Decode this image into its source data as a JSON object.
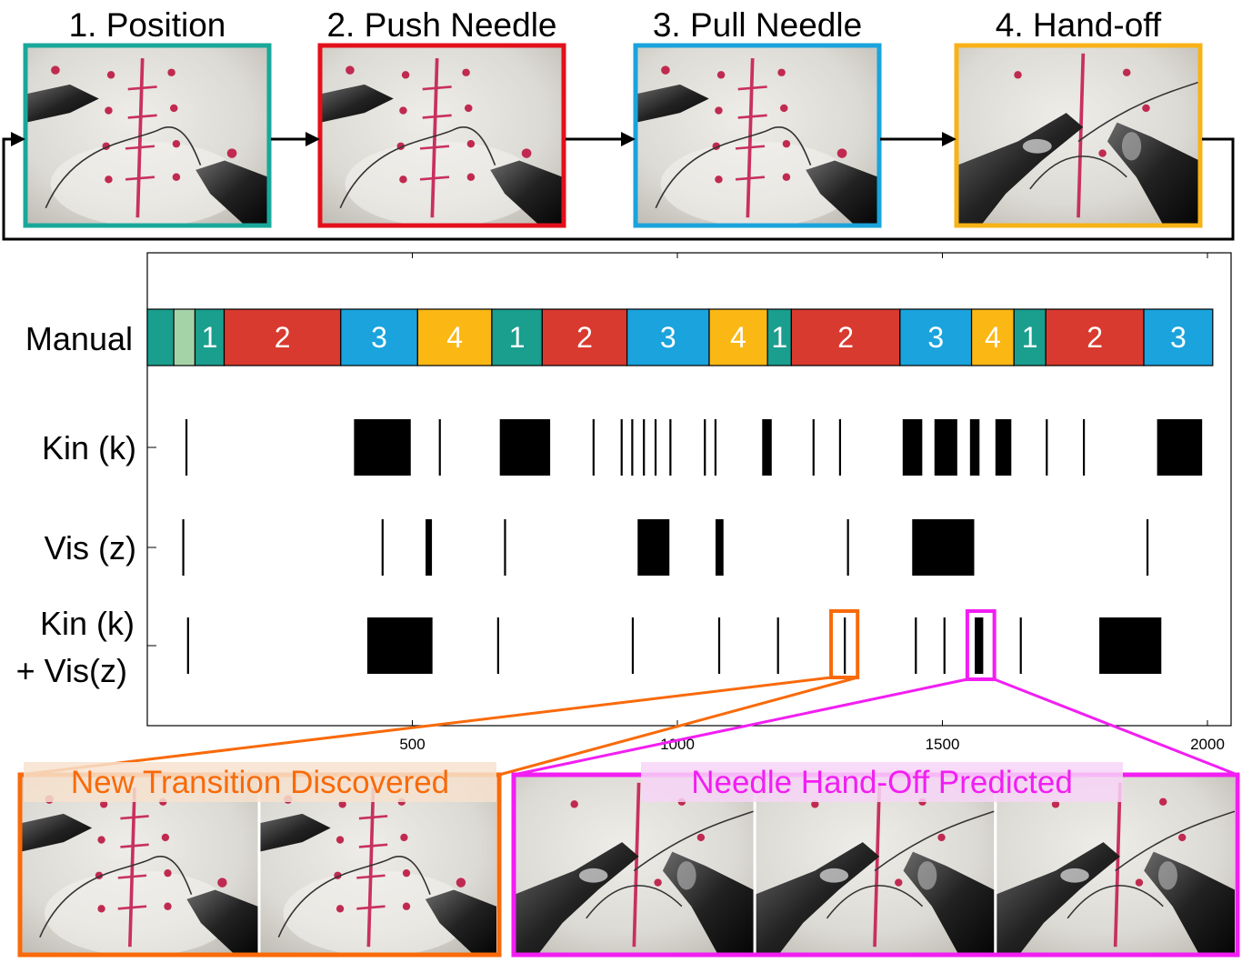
{
  "colors": {
    "position": "#1a9e8e",
    "push": "#d93a2f",
    "pull": "#1aa3dc",
    "handoff": "#fbb714",
    "light": "#a5d3a8",
    "frame_position": "#18a89a",
    "frame_push": "#e3101c",
    "frame_pull": "#1aa3dc",
    "frame_handoff": "#f8b217",
    "orange": "#f86a0a",
    "magenta": "#f21ef2"
  },
  "steps": [
    {
      "label": "1. Position",
      "color": "frame_position",
      "icon": "surgical-frame-position-photo"
    },
    {
      "label": "2. Push Needle",
      "color": "frame_push",
      "icon": "surgical-frame-push-needle-photo"
    },
    {
      "label": "3. Pull Needle",
      "color": "frame_pull",
      "icon": "surgical-frame-pull-needle-photo"
    },
    {
      "label": "4. Hand-off",
      "color": "frame_handoff",
      "icon": "surgical-frame-hand-off-photo"
    }
  ],
  "chart_data": {
    "type": "timeline",
    "xlim": [
      0,
      2030
    ],
    "x_ticks": [
      500,
      1000,
      1500,
      2000
    ],
    "rows": [
      {
        "label": "Manual",
        "kind": "segments"
      },
      {
        "label": "Kin (k)",
        "kind": "events"
      },
      {
        "label": "Vis (z)",
        "kind": "events"
      },
      {
        "label": "Kin (k)",
        "label2": "+ Vis(z)",
        "kind": "events"
      }
    ],
    "manual_segments": [
      {
        "start": 0,
        "end": 50,
        "color": "position",
        "label": ""
      },
      {
        "start": 50,
        "end": 90,
        "color": "light",
        "label": ""
      },
      {
        "start": 90,
        "end": 145,
        "color": "position",
        "label": "1"
      },
      {
        "start": 145,
        "end": 365,
        "color": "push",
        "label": "2"
      },
      {
        "start": 365,
        "end": 510,
        "color": "pull",
        "label": "3"
      },
      {
        "start": 510,
        "end": 650,
        "color": "handoff",
        "label": "4"
      },
      {
        "start": 650,
        "end": 745,
        "color": "position",
        "label": "1"
      },
      {
        "start": 745,
        "end": 905,
        "color": "push",
        "label": "2"
      },
      {
        "start": 905,
        "end": 1060,
        "color": "pull",
        "label": "3"
      },
      {
        "start": 1060,
        "end": 1170,
        "color": "handoff",
        "label": "4"
      },
      {
        "start": 1170,
        "end": 1215,
        "color": "position",
        "label": "1"
      },
      {
        "start": 1215,
        "end": 1420,
        "color": "push",
        "label": "2"
      },
      {
        "start": 1420,
        "end": 1555,
        "color": "pull",
        "label": "3"
      },
      {
        "start": 1555,
        "end": 1635,
        "color": "handoff",
        "label": "4"
      },
      {
        "start": 1635,
        "end": 1695,
        "color": "position",
        "label": "1"
      },
      {
        "start": 1695,
        "end": 1880,
        "color": "push",
        "label": "2"
      },
      {
        "start": 1880,
        "end": 2010,
        "color": "pull",
        "label": "3"
      }
    ],
    "kin_events": [
      {
        "start": 72,
        "end": 74
      },
      {
        "start": 390,
        "end": 497
      },
      {
        "start": 550,
        "end": 552
      },
      {
        "start": 665,
        "end": 760
      },
      {
        "start": 840,
        "end": 842
      },
      {
        "start": 893,
        "end": 895
      },
      {
        "start": 913,
        "end": 915
      },
      {
        "start": 935,
        "end": 937
      },
      {
        "start": 957,
        "end": 959
      },
      {
        "start": 985,
        "end": 987
      },
      {
        "start": 1050,
        "end": 1052
      },
      {
        "start": 1070,
        "end": 1072
      },
      {
        "start": 1160,
        "end": 1178
      },
      {
        "start": 1255,
        "end": 1257
      },
      {
        "start": 1305,
        "end": 1307
      },
      {
        "start": 1425,
        "end": 1462
      },
      {
        "start": 1485,
        "end": 1528
      },
      {
        "start": 1552,
        "end": 1570
      },
      {
        "start": 1600,
        "end": 1630
      },
      {
        "start": 1695,
        "end": 1697
      },
      {
        "start": 1765,
        "end": 1767
      },
      {
        "start": 1905,
        "end": 1990
      }
    ],
    "vis_events": [
      {
        "start": 66,
        "end": 68
      },
      {
        "start": 442,
        "end": 444
      },
      {
        "start": 525,
        "end": 537
      },
      {
        "start": 673,
        "end": 675
      },
      {
        "start": 925,
        "end": 985
      },
      {
        "start": 1072,
        "end": 1087
      },
      {
        "start": 1320,
        "end": 1322
      },
      {
        "start": 1443,
        "end": 1560
      },
      {
        "start": 1885,
        "end": 1887
      }
    ],
    "combined_events": [
      {
        "start": 75,
        "end": 77
      },
      {
        "start": 415,
        "end": 538
      },
      {
        "start": 660,
        "end": 662
      },
      {
        "start": 914,
        "end": 916
      },
      {
        "start": 1077,
        "end": 1079
      },
      {
        "start": 1188,
        "end": 1190
      },
      {
        "start": 1314,
        "end": 1316
      },
      {
        "start": 1448,
        "end": 1450
      },
      {
        "start": 1502,
        "end": 1504
      },
      {
        "start": 1561,
        "end": 1577
      },
      {
        "start": 1646,
        "end": 1648
      },
      {
        "start": 1796,
        "end": 1913
      }
    ],
    "highlights": [
      {
        "start": 1290,
        "end": 1340,
        "color": "orange"
      },
      {
        "start": 1547,
        "end": 1598,
        "color": "magenta"
      }
    ]
  },
  "panels": [
    {
      "title": "New Transition Discovered",
      "color": "orange",
      "frames": 2,
      "icon": "surgical-frame-transition-photo"
    },
    {
      "title": "Needle Hand-Off Predicted",
      "color": "magenta",
      "frames": 3,
      "icon": "surgical-frame-hand-off-photo"
    }
  ]
}
